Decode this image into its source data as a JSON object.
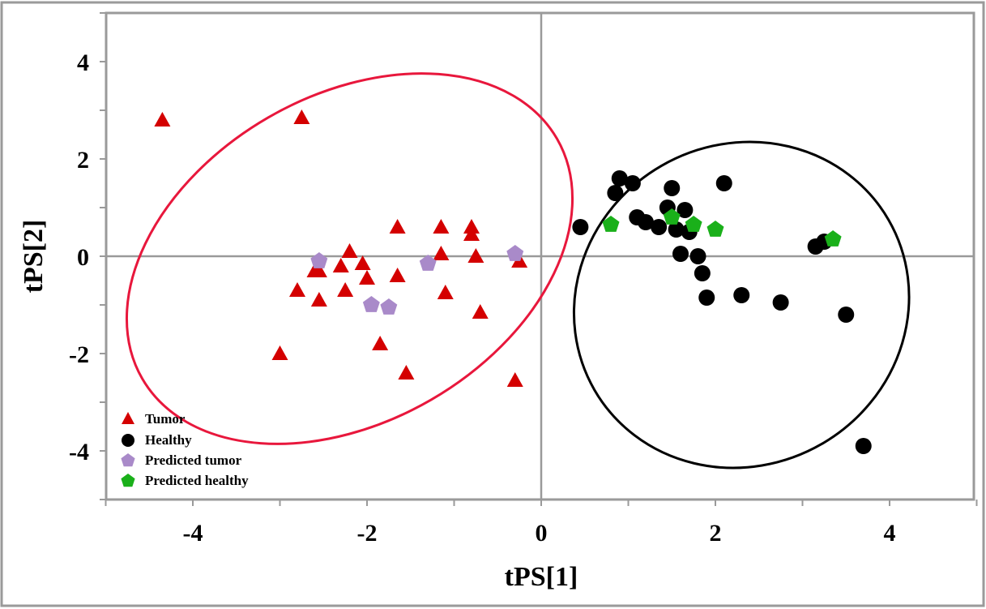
{
  "chart_data": {
    "type": "scatter",
    "title": "",
    "xlabel": "tPS[1]",
    "ylabel": "tPS[2]",
    "xlim": [
      -5,
      5
    ],
    "ylim": [
      -5,
      5
    ],
    "xticks": [
      -4,
      -2,
      0,
      2,
      4
    ],
    "yticks": [
      -4,
      -2,
      0,
      2,
      4
    ],
    "legend_position": "bottom-left",
    "series": [
      {
        "name": "Tumor",
        "marker": "triangle",
        "color": "#d40000",
        "points": [
          [
            -4.35,
            2.8
          ],
          [
            -2.75,
            2.85
          ],
          [
            -1.65,
            0.6
          ],
          [
            -1.15,
            0.6
          ],
          [
            -0.8,
            0.6
          ],
          [
            -0.8,
            0.45
          ],
          [
            -2.2,
            0.1
          ],
          [
            -1.15,
            0.05
          ],
          [
            -0.75,
            0.0
          ],
          [
            -0.25,
            -0.1
          ],
          [
            -2.3,
            -0.2
          ],
          [
            -2.05,
            -0.15
          ],
          [
            -2.6,
            -0.3
          ],
          [
            -2.55,
            -0.3
          ],
          [
            -2.0,
            -0.45
          ],
          [
            -1.65,
            -0.4
          ],
          [
            -2.8,
            -0.7
          ],
          [
            -2.25,
            -0.7
          ],
          [
            -1.1,
            -0.75
          ],
          [
            -2.55,
            -0.9
          ],
          [
            -0.7,
            -1.15
          ],
          [
            -1.85,
            -1.8
          ],
          [
            -3.0,
            -2.0
          ],
          [
            -1.55,
            -2.4
          ],
          [
            -0.3,
            -2.55
          ]
        ]
      },
      {
        "name": "Healthy",
        "marker": "circle",
        "color": "#000000",
        "points": [
          [
            0.45,
            0.6
          ],
          [
            0.9,
            1.6
          ],
          [
            1.05,
            1.5
          ],
          [
            0.85,
            1.3
          ],
          [
            2.1,
            1.5
          ],
          [
            1.5,
            1.4
          ],
          [
            1.45,
            1.0
          ],
          [
            1.65,
            0.95
          ],
          [
            1.1,
            0.8
          ],
          [
            1.2,
            0.7
          ],
          [
            1.35,
            0.6
          ],
          [
            1.55,
            0.55
          ],
          [
            1.7,
            0.5
          ],
          [
            1.6,
            0.05
          ],
          [
            1.8,
            0.0
          ],
          [
            1.85,
            -0.35
          ],
          [
            1.9,
            -0.85
          ],
          [
            2.3,
            -0.8
          ],
          [
            2.75,
            -0.95
          ],
          [
            3.15,
            0.2
          ],
          [
            3.25,
            0.3
          ],
          [
            3.5,
            -1.2
          ],
          [
            3.7,
            -3.9
          ]
        ]
      },
      {
        "name": "Predicted tumor",
        "marker": "pentagon",
        "color": "#a98ac9",
        "points": [
          [
            -2.55,
            -0.1
          ],
          [
            -1.3,
            -0.15
          ],
          [
            -0.3,
            0.05
          ],
          [
            -1.95,
            -1.0
          ],
          [
            -1.75,
            -1.05
          ]
        ]
      },
      {
        "name": "Predicted healthy",
        "marker": "pentagon",
        "color": "#1ab01a",
        "points": [
          [
            0.8,
            0.65
          ],
          [
            1.5,
            0.8
          ],
          [
            1.75,
            0.65
          ],
          [
            2.0,
            0.55
          ],
          [
            3.35,
            0.35
          ]
        ]
      }
    ],
    "ellipses": [
      {
        "group": "Tumor",
        "color": "#e8173c",
        "center": [
          -2.2,
          -0.05
        ],
        "rx_data": 2.75,
        "ry_data": 3.35,
        "rotation_deg": -30
      },
      {
        "group": "Healthy",
        "color": "#000000",
        "center": [
          2.3,
          -1.0
        ],
        "rx_data": 1.95,
        "ry_data": 3.3,
        "rotation_deg": -30
      }
    ]
  },
  "legend": {
    "tumor": "Tumor",
    "healthy": "Healthy",
    "predicted_tumor": "Predicted tumor",
    "predicted_healthy": "Predicted healthy"
  }
}
